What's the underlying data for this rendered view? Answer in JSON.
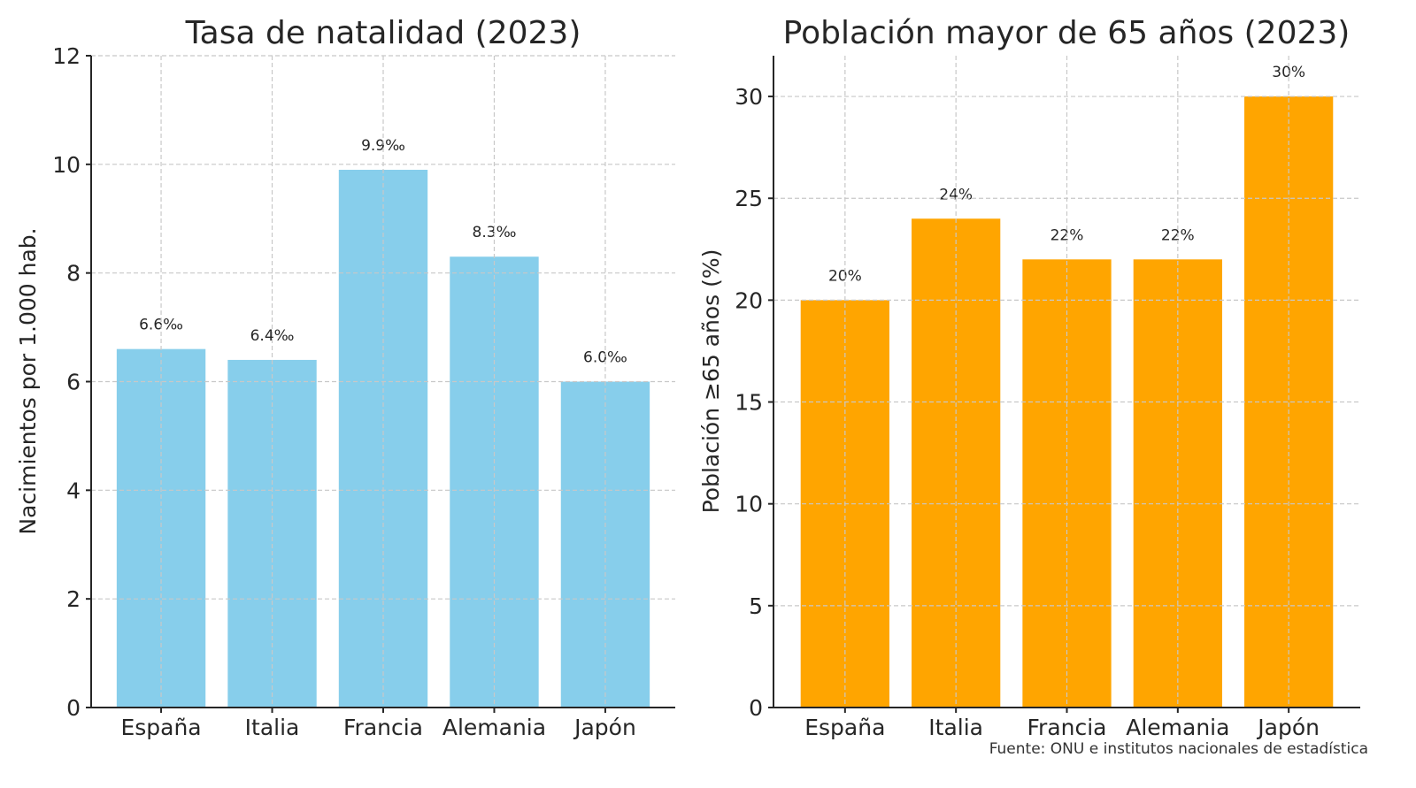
{
  "chart_data": [
    {
      "type": "bar",
      "title": "Tasa de natalidad (2023)",
      "xlabel": "",
      "ylabel": "Nacimientos por 1.000 hab.",
      "categories": [
        "España",
        "Italia",
        "Francia",
        "Alemania",
        "Japón"
      ],
      "values": [
        6.6,
        6.4,
        9.9,
        8.3,
        6.0
      ],
      "data_labels": [
        "6.6‰",
        "6.4‰",
        "9.9‰",
        "8.3‰",
        "6.0‰"
      ],
      "yticks": [
        0,
        2,
        4,
        6,
        8,
        10,
        12
      ],
      "ylim": [
        0,
        12
      ],
      "color": "#87CEEB",
      "grid": true
    },
    {
      "type": "bar",
      "title": "Población mayor de 65 años (2023)",
      "xlabel": "",
      "ylabel": "Población ≥65 años (%)",
      "categories": [
        "España",
        "Italia",
        "Francia",
        "Alemania",
        "Japón"
      ],
      "values": [
        20,
        24,
        22,
        22,
        30
      ],
      "data_labels": [
        "20%",
        "24%",
        "22%",
        "22%",
        "30%"
      ],
      "yticks": [
        0,
        5,
        10,
        15,
        20,
        25,
        30
      ],
      "ylim": [
        0,
        32
      ],
      "color": "#FFA500",
      "grid": true
    }
  ],
  "source": "Fuente: ONU e institutos nacionales de estadística"
}
